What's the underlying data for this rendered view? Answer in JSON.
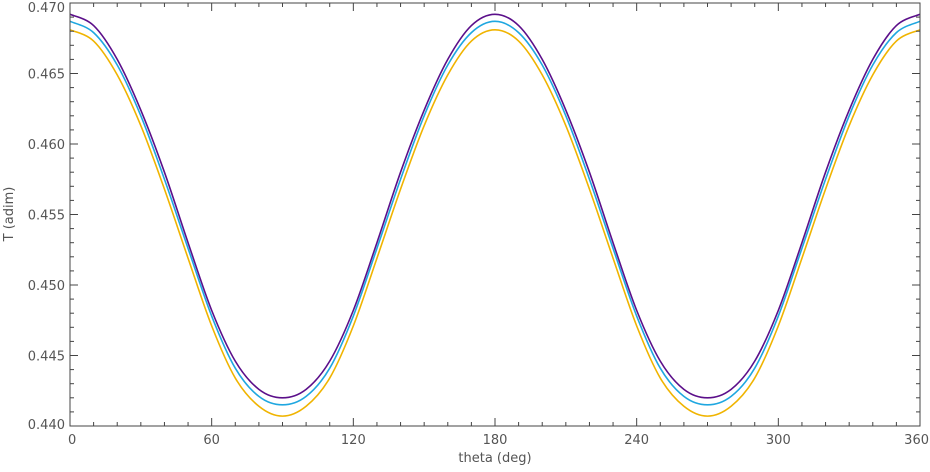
{
  "chart_data": {
    "type": "line",
    "title": "",
    "xlabel": "theta (deg)",
    "ylabel": "T (adim)",
    "xlim": [
      0,
      360
    ],
    "ylim": [
      0.44,
      0.47
    ],
    "xticks": [
      0,
      60,
      120,
      180,
      240,
      300,
      360
    ],
    "xtick_labels": [
      "0",
      "60",
      "120",
      "180",
      "240",
      "300",
      "360"
    ],
    "yticks": [
      0.44,
      0.445,
      0.45,
      0.455,
      0.46,
      0.465,
      0.47
    ],
    "ytick_labels": [
      "0.440",
      "0.445",
      "0.450",
      "0.455",
      "0.460",
      "0.465",
      "0.470"
    ],
    "grid": false,
    "x": [
      0,
      10,
      20,
      30,
      40,
      50,
      60,
      70,
      80,
      90,
      100,
      110,
      120,
      130,
      140,
      150,
      160,
      170,
      180,
      190,
      200,
      210,
      220,
      230,
      240,
      250,
      260,
      270,
      280,
      290,
      300,
      310,
      320,
      330,
      340,
      350,
      360
    ],
    "series": [
      {
        "color": "#5b0f8a",
        "values": [
          0.4692,
          0.4684,
          0.466,
          0.4624,
          0.458,
          0.453,
          0.4482,
          0.4446,
          0.4426,
          0.442,
          0.4426,
          0.4446,
          0.4482,
          0.453,
          0.458,
          0.4624,
          0.466,
          0.4684,
          0.4692,
          0.4684,
          0.466,
          0.4624,
          0.458,
          0.453,
          0.4482,
          0.4446,
          0.4426,
          0.442,
          0.4426,
          0.4446,
          0.4482,
          0.453,
          0.458,
          0.4624,
          0.466,
          0.4684,
          0.4692
        ]
      },
      {
        "color": "#1fa7e0",
        "values": [
          0.4687,
          0.4679,
          0.4656,
          0.462,
          0.4575,
          0.4526,
          0.4478,
          0.4441,
          0.4421,
          0.4415,
          0.4421,
          0.4441,
          0.4478,
          0.4526,
          0.4575,
          0.462,
          0.4656,
          0.4679,
          0.4687,
          0.4679,
          0.4656,
          0.462,
          0.4575,
          0.4526,
          0.4478,
          0.4441,
          0.4421,
          0.4415,
          0.4421,
          0.4441,
          0.4478,
          0.4526,
          0.4575,
          0.462,
          0.4656,
          0.4679,
          0.4687
        ]
      },
      {
        "color": "#f0b400",
        "values": [
          0.4681,
          0.4673,
          0.4649,
          0.4613,
          0.4568,
          0.4519,
          0.4471,
          0.4434,
          0.4414,
          0.4407,
          0.4414,
          0.4434,
          0.4471,
          0.4519,
          0.4568,
          0.4613,
          0.4649,
          0.4673,
          0.4681,
          0.4673,
          0.4649,
          0.4613,
          0.4568,
          0.4519,
          0.4471,
          0.4434,
          0.4414,
          0.4407,
          0.4414,
          0.4434,
          0.4471,
          0.4519,
          0.4568,
          0.4613,
          0.4649,
          0.4673,
          0.4681
        ]
      }
    ]
  }
}
